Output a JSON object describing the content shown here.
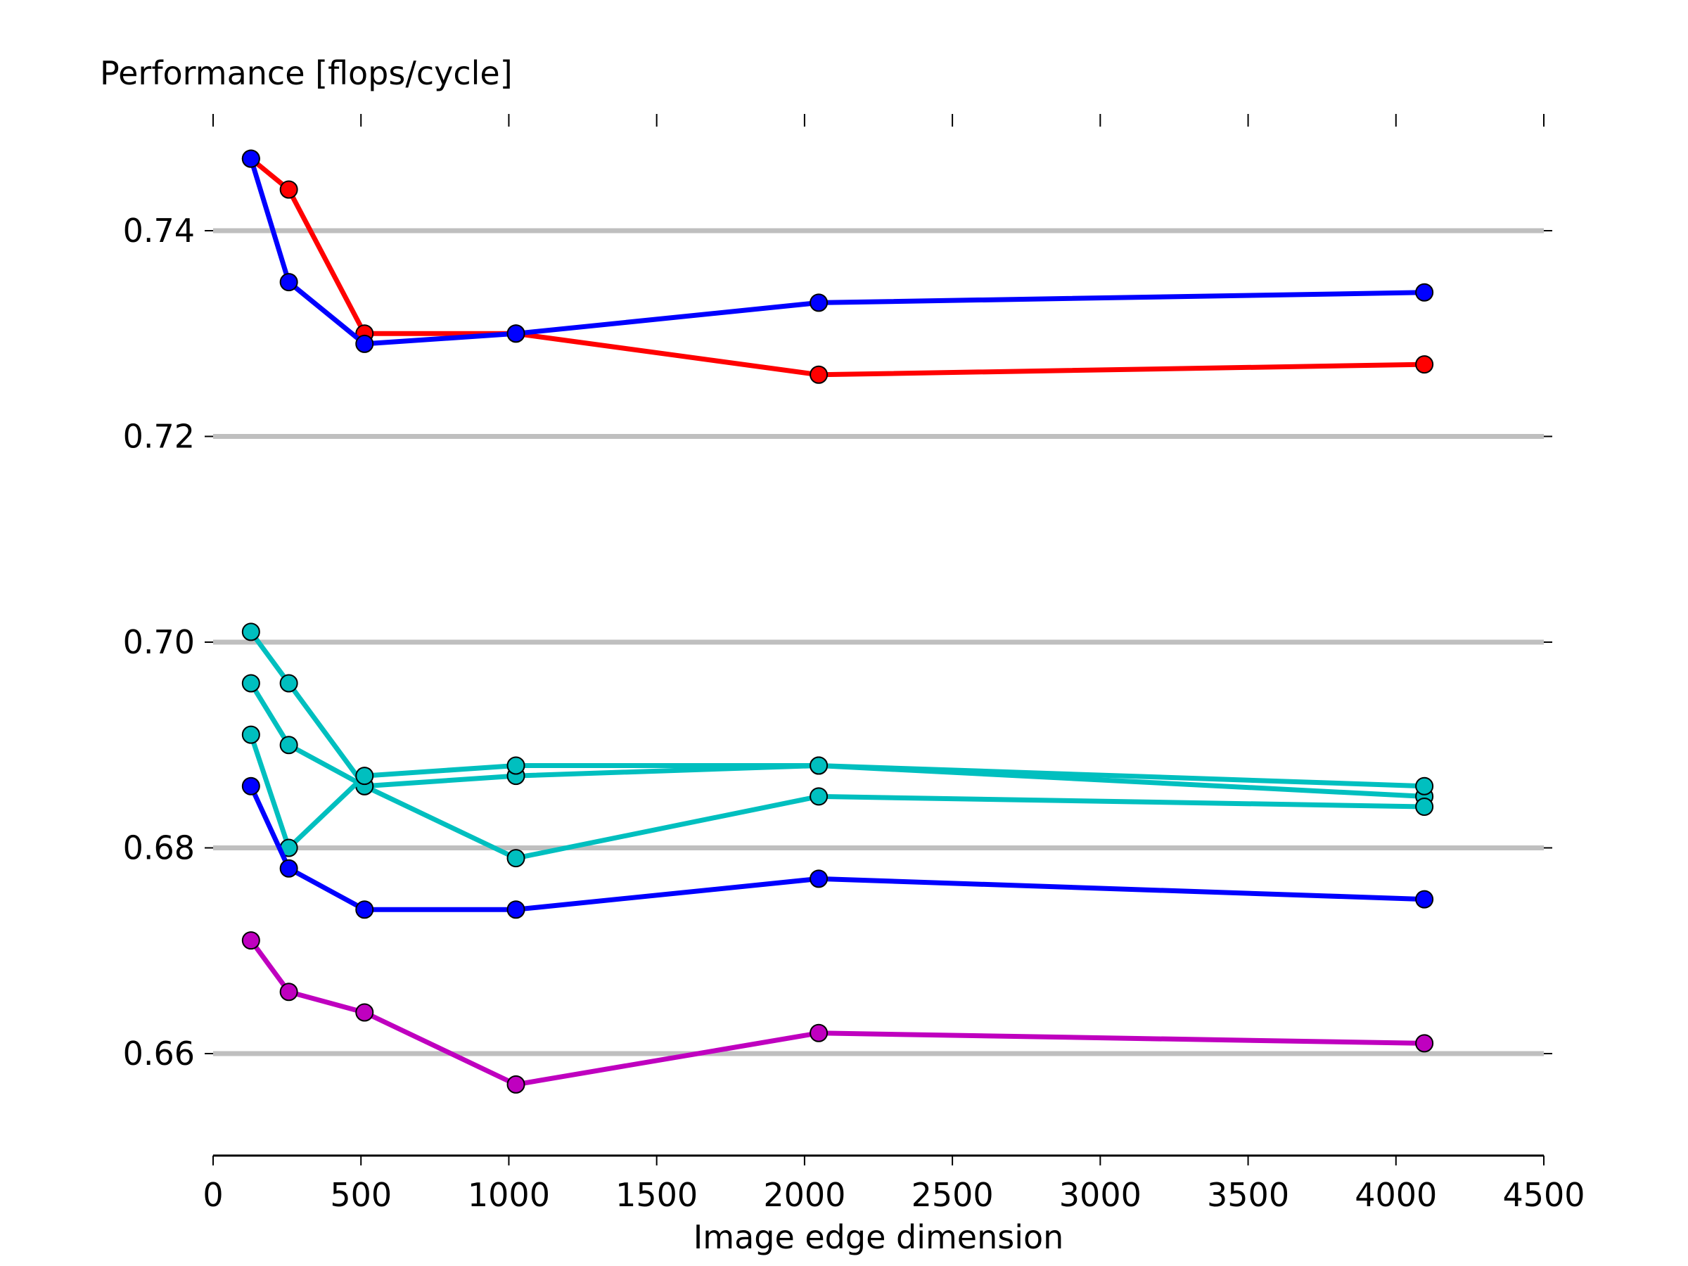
{
  "chart_data": {
    "type": "line",
    "title": "",
    "ylabel": "Performance [flops/cycle]",
    "xlabel": "Image edge dimension",
    "xlim": [
      0,
      4500
    ],
    "ylim": [
      0.65,
      0.75
    ],
    "x_ticks": [
      "0",
      "500",
      "1000",
      "1500",
      "2000",
      "2500",
      "3000",
      "3500",
      "4000",
      "4500"
    ],
    "y_ticks": [
      "0.66",
      "0.68",
      "0.70",
      "0.72",
      "0.74"
    ],
    "grid": "horizontal",
    "legend": "none",
    "series": [
      {
        "color": "#ff0000",
        "x": [
          128,
          256,
          512,
          1024,
          2048,
          4096
        ],
        "values": [
          0.747,
          0.744,
          0.73,
          0.73,
          0.726,
          0.727
        ]
      },
      {
        "color": "#0000ff",
        "x": [
          128,
          256,
          512,
          1024,
          2048,
          4096
        ],
        "values": [
          0.747,
          0.735,
          0.729,
          0.73,
          0.733,
          0.734
        ]
      },
      {
        "color": "#00bfbf",
        "x": [
          128,
          256,
          512,
          1024,
          2048,
          4096
        ],
        "values": [
          0.701,
          0.696,
          0.686,
          0.687,
          0.688,
          0.685
        ]
      },
      {
        "color": "#00bfbf",
        "x": [
          128,
          256,
          512,
          1024,
          2048,
          4096
        ],
        "values": [
          0.696,
          0.69,
          0.686,
          0.679,
          0.685,
          0.684
        ]
      },
      {
        "color": "#00bfbf",
        "x": [
          128,
          256,
          512,
          1024,
          2048,
          4096
        ],
        "values": [
          0.691,
          0.68,
          0.687,
          0.688,
          0.688,
          0.686
        ]
      },
      {
        "color": "#0000ff",
        "x": [
          128,
          256,
          512,
          1024,
          2048,
          4096
        ],
        "values": [
          0.686,
          0.678,
          0.674,
          0.674,
          0.677,
          0.675
        ]
      },
      {
        "color": "#bf00bf",
        "x": [
          128,
          256,
          512,
          1024,
          2048,
          4096
        ],
        "values": [
          0.671,
          0.666,
          0.664,
          0.657,
          0.662,
          0.661
        ]
      }
    ]
  }
}
